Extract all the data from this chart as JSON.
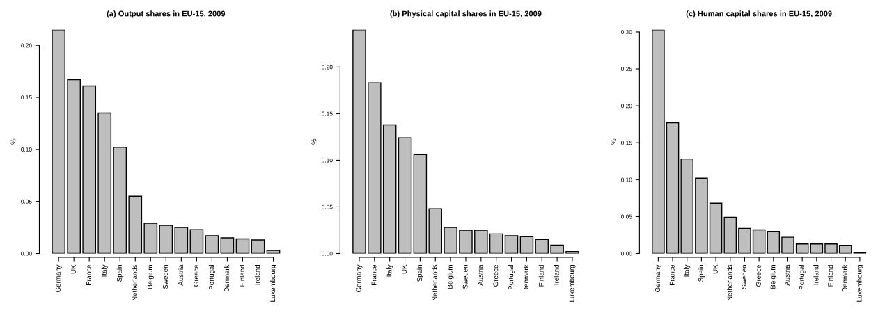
{
  "chart_data": [
    {
      "type": "bar",
      "title": "(a) Output shares in EU-15, 2009",
      "ylabel": "%",
      "categories": [
        "Germany",
        "UK",
        "France",
        "Italy",
        "Spain",
        "Netherlands",
        "Belgium",
        "Sweden",
        "Austria",
        "Greece",
        "Portugal",
        "Denmark",
        "Finland",
        "Ireland",
        "Luxembourg"
      ],
      "values": [
        0.215,
        0.167,
        0.161,
        0.135,
        0.102,
        0.055,
        0.029,
        0.027,
        0.025,
        0.023,
        0.017,
        0.015,
        0.014,
        0.013,
        0.003
      ],
      "color": "#bebebe",
      "ylim": [
        0,
        0.215
      ],
      "yticks": [
        {
          "value": 0,
          "label": "0.00"
        },
        {
          "value": 0.05,
          "label": "0.05"
        },
        {
          "value": 0.1,
          "label": "0.10"
        },
        {
          "value": 0.15,
          "label": "0.15"
        },
        {
          "value": 0.2,
          "label": "0.20"
        }
      ],
      "grid": false
    },
    {
      "type": "bar",
      "title": "(b) Physical capital shares in EU-15, 2009",
      "ylabel": "%",
      "categories": [
        "Germany",
        "France",
        "Italy",
        "UK",
        "Spain",
        "Netherlands",
        "Belgium",
        "Sweden",
        "Austria",
        "Greece",
        "Portugal",
        "Denmark",
        "Finland",
        "Ireland",
        "Luxembourg"
      ],
      "values": [
        0.24,
        0.183,
        0.138,
        0.124,
        0.106,
        0.048,
        0.028,
        0.025,
        0.025,
        0.021,
        0.019,
        0.018,
        0.015,
        0.009,
        0.002
      ],
      "color": "#bebebe",
      "ylim": [
        0,
        0.24
      ],
      "yticks": [
        {
          "value": 0,
          "label": "0.00"
        },
        {
          "value": 0.05,
          "label": "0.05"
        },
        {
          "value": 0.1,
          "label": "0.10"
        },
        {
          "value": 0.15,
          "label": "0.15"
        },
        {
          "value": 0.2,
          "label": "0.20"
        }
      ],
      "grid": false
    },
    {
      "type": "bar",
      "title": "(c) Human capital shares in EU-15, 2009",
      "ylabel": "%",
      "categories": [
        "Germany",
        "France",
        "Italy",
        "Spain",
        "UK",
        "Netherlands",
        "Sweden",
        "Greece",
        "Belgium",
        "Austria",
        "Portugal",
        "Ireland",
        "Finland",
        "Denmark",
        "Luxembourg"
      ],
      "values": [
        0.303,
        0.177,
        0.128,
        0.102,
        0.068,
        0.049,
        0.034,
        0.032,
        0.03,
        0.022,
        0.013,
        0.013,
        0.013,
        0.011,
        0.001
      ],
      "color": "#bebebe",
      "ylim": [
        0,
        0.303
      ],
      "yticks": [
        {
          "value": 0,
          "label": "0.00"
        },
        {
          "value": 0.05,
          "label": "0.05"
        },
        {
          "value": 0.1,
          "label": "0.10"
        },
        {
          "value": 0.15,
          "label": "0.15"
        },
        {
          "value": 0.2,
          "label": "0.20"
        },
        {
          "value": 0.25,
          "label": "0.25"
        },
        {
          "value": 0.3,
          "label": "0.30"
        }
      ],
      "grid": false
    }
  ]
}
